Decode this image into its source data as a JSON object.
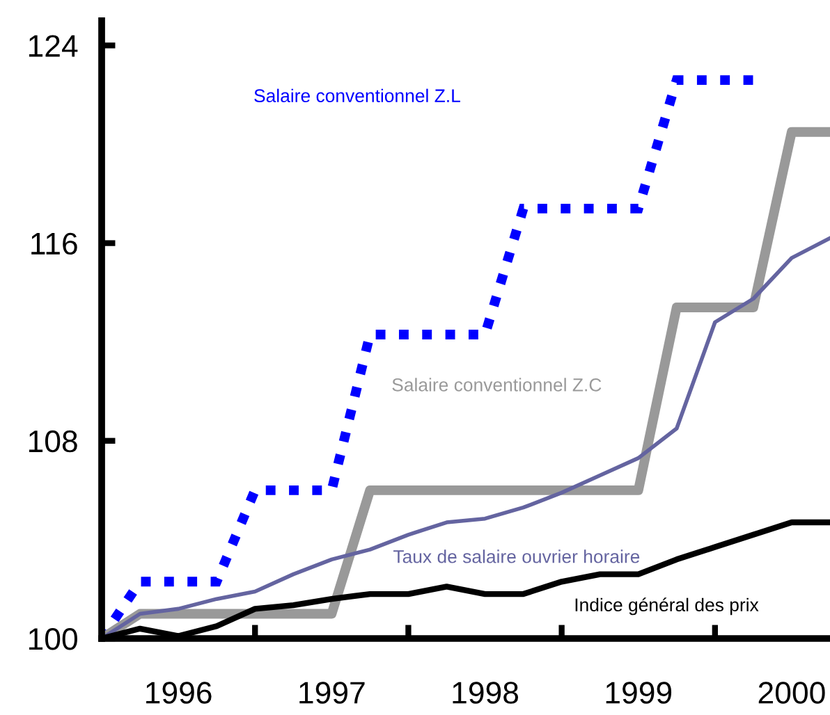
{
  "chart_data": {
    "type": "line",
    "x": [
      1996,
      1996.25,
      1996.5,
      1996.75,
      1997,
      1997.25,
      1997.5,
      1997.75,
      1998,
      1998.25,
      1998.5,
      1998.75,
      1999,
      1999.25,
      1999.5,
      1999.75,
      2000,
      2000.25,
      2000.5,
      2000.75
    ],
    "series": [
      {
        "name": "Salaire conventionnel Z.L",
        "color": "#0000ff",
        "line_style": "dotted",
        "values": [
          100,
          102.3,
          102.3,
          102.3,
          106.0,
          106.0,
          106.0,
          112.3,
          112.3,
          112.3,
          112.3,
          117.4,
          117.4,
          117.4,
          117.4,
          122.6,
          122.6,
          122.6,
          null,
          null
        ]
      },
      {
        "name": "Salaire conventionnel Z.C",
        "color": "#999999",
        "line_style": "solid",
        "values": [
          100,
          101.0,
          101.0,
          101.0,
          101.0,
          101.0,
          101.0,
          106.0,
          106.0,
          106.0,
          106.0,
          106.0,
          106.0,
          106.0,
          106.0,
          113.4,
          113.4,
          113.4,
          120.5,
          120.5
        ]
      },
      {
        "name": "Taux de salaire ouvrier horaire",
        "color": "#6464a0",
        "line_style": "solid",
        "values": [
          100,
          101.0,
          101.2,
          101.6,
          101.9,
          102.6,
          103.2,
          103.6,
          104.2,
          104.7,
          104.85,
          105.3,
          105.9,
          106.6,
          107.3,
          108.5,
          112.8,
          113.75,
          115.4,
          116.2
        ]
      },
      {
        "name": "Indice général des prix",
        "color": "#000000",
        "line_style": "solid",
        "values": [
          100,
          100.4,
          100.1,
          100.5,
          101.2,
          101.35,
          101.6,
          101.8,
          101.8,
          102.1,
          101.8,
          101.8,
          102.3,
          102.6,
          102.6,
          103.2,
          103.7,
          104.2,
          104.7,
          104.7
        ]
      }
    ],
    "xlim": [
      1996,
      2000.75
    ],
    "xticks": [
      {
        "value": 1996.5,
        "label": "1996"
      },
      {
        "value": 1997,
        "label": null
      },
      {
        "value": 1997.5,
        "label": "1997"
      },
      {
        "value": 1998,
        "label": null
      },
      {
        "value": 1998.5,
        "label": "1998"
      },
      {
        "value": 1999,
        "label": null
      },
      {
        "value": 1999.5,
        "label": "1999"
      },
      {
        "value": 2000,
        "label": null
      },
      {
        "value": 2000.5,
        "label": "2000"
      }
    ],
    "ylim": [
      100,
      125
    ],
    "yticks": [
      100,
      108,
      116,
      124
    ],
    "grid": false,
    "legend": false,
    "marker": "none"
  }
}
